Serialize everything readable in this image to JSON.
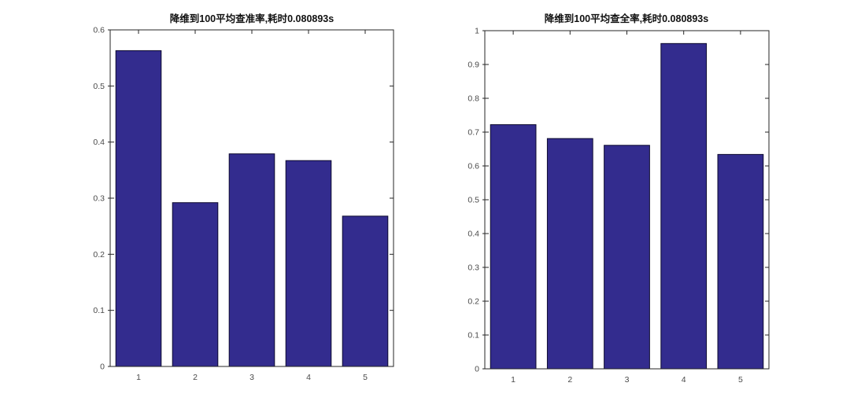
{
  "page": {
    "background": "#ffffff"
  },
  "styles": {
    "axis_color": "#262626",
    "tick_label_color": "#4a4a4a",
    "title_color": "#111111",
    "plot_background": "#ffffff"
  },
  "chart_data": [
    {
      "type": "bar",
      "title": "降维到100平均查准率,耗时0.080893s",
      "categories": [
        "1",
        "2",
        "3",
        "4",
        "5"
      ],
      "values": [
        0.563,
        0.292,
        0.379,
        0.367,
        0.268
      ],
      "xlabel": "",
      "ylabel": "",
      "ylim": [
        0,
        0.6
      ],
      "yticks": [
        0,
        0.1,
        0.2,
        0.3,
        0.4,
        0.5,
        0.6
      ],
      "ytick_labels": [
        "0",
        "0.1",
        "0.2",
        "0.3",
        "0.4",
        "0.5",
        "0.6"
      ],
      "grid": false,
      "legend": null,
      "bar_width_ratio": 0.8,
      "bar_color": "#332c8e",
      "bar_edge_color": "#0e0b30"
    },
    {
      "type": "bar",
      "title": "降维到100平均查全率,耗时0.080893s",
      "categories": [
        "1",
        "2",
        "3",
        "4",
        "5"
      ],
      "values": [
        0.722,
        0.681,
        0.661,
        0.962,
        0.634
      ],
      "xlabel": "",
      "ylabel": "",
      "ylim": [
        0,
        1
      ],
      "yticks": [
        0,
        0.1,
        0.2,
        0.3,
        0.4,
        0.5,
        0.6,
        0.7,
        0.8,
        0.9,
        1
      ],
      "ytick_labels": [
        "0",
        "0.1",
        "0.2",
        "0.3",
        "0.4",
        "0.5",
        "0.6",
        "0.7",
        "0.8",
        "0.9",
        "1"
      ],
      "grid": false,
      "legend": null,
      "bar_width_ratio": 0.8,
      "bar_color": "#332c8e",
      "bar_edge_color": "#0e0b30"
    }
  ]
}
